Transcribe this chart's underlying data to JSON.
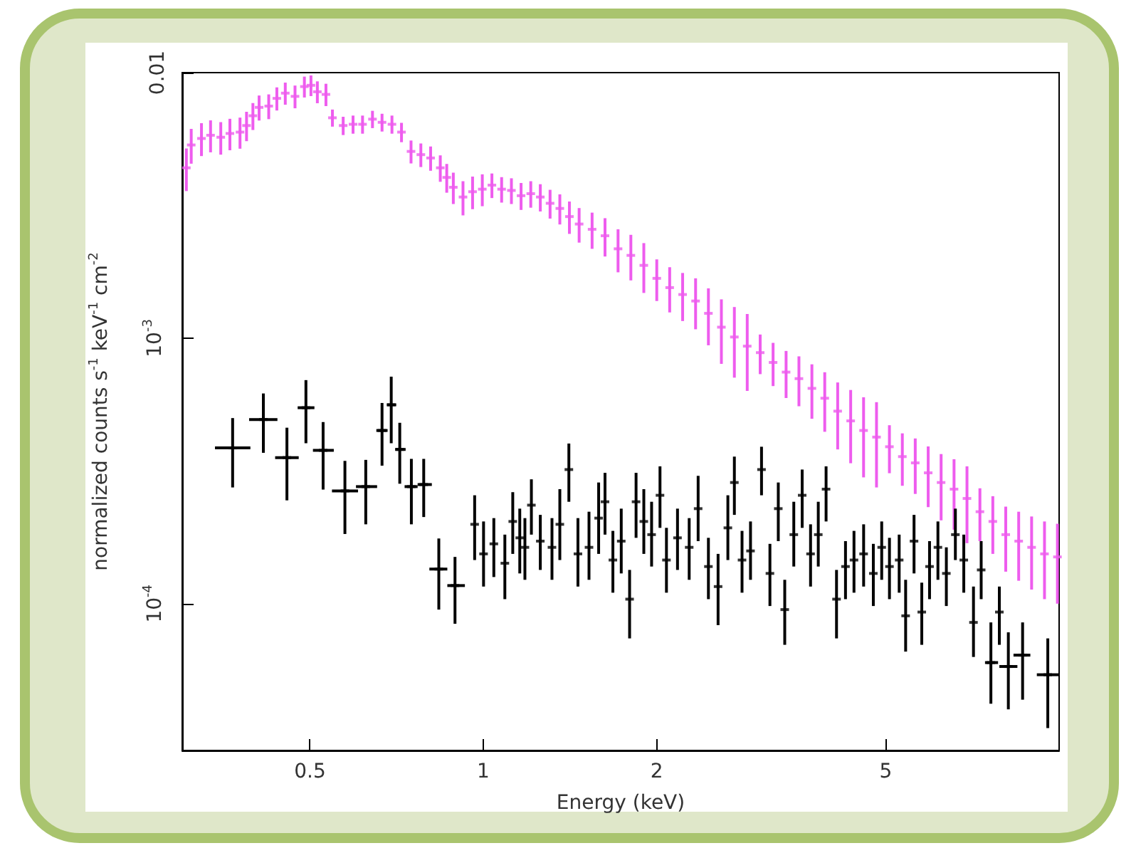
{
  "chart_data": {
    "type": "scatter",
    "xlabel": "Energy (keV)",
    "ylabel": "normalized counts s$^{-1}$ keV$^{-1}$ cm$^{-2}$",
    "log": "xy",
    "xlim": [
      0.3,
      10
    ],
    "xticks": [
      0.5,
      1,
      2,
      5
    ],
    "ylim": [
      2.8e-05,
      0.01
    ],
    "yticks": [
      0.01,
      {
        "value": 0.001,
        "label": "10$^{-3}$"
      },
      {
        "value": 0.0001,
        "label": "10$^{-4}$"
      }
    ],
    "series": [
      {
        "color": "#ee5cee",
        "x": [
          0.305,
          0.311,
          0.324,
          0.336,
          0.35,
          0.363,
          0.378,
          0.388,
          0.398,
          0.408,
          0.424,
          0.438,
          0.453,
          0.471,
          0.489,
          0.502,
          0.515,
          0.533,
          0.547,
          0.571,
          0.594,
          0.617,
          0.642,
          0.667,
          0.694,
          0.721,
          0.749,
          0.779,
          0.81,
          0.842,
          0.864,
          0.887,
          0.922,
          0.958,
          0.996,
          1.035,
          1.076,
          1.119,
          1.163,
          1.209,
          1.256,
          1.306,
          1.358,
          1.411,
          1.467,
          1.545,
          1.627,
          1.714,
          1.804,
          1.9,
          2.001,
          2.107,
          2.219,
          2.337,
          2.46,
          2.591,
          2.729,
          2.873,
          3.026,
          3.186,
          3.356,
          3.533,
          3.721,
          3.917,
          4.125,
          4.345,
          4.575,
          4.818,
          5.073,
          5.342,
          5.625,
          5.924,
          6.238,
          6.569,
          6.918,
          7.285,
          7.671,
          8.078,
          8.507,
          8.958,
          9.432,
          9.933
        ],
        "values": [
          0.00438,
          0.00534,
          0.00565,
          0.00581,
          0.00571,
          0.0059,
          0.00597,
          0.00632,
          0.00688,
          0.0074,
          0.00748,
          0.008,
          0.00837,
          0.00814,
          0.00886,
          0.00896,
          0.00847,
          0.00828,
          0.00676,
          0.00632,
          0.00639,
          0.00639,
          0.00668,
          0.0065,
          0.00639,
          0.00597,
          0.00505,
          0.00491,
          0.00477,
          0.00438,
          0.00403,
          0.0037,
          0.0034,
          0.00356,
          0.00364,
          0.00377,
          0.00364,
          0.0036,
          0.00344,
          0.0035,
          0.0034,
          0.00322,
          0.00308,
          0.00287,
          0.00269,
          0.00257,
          0.00243,
          0.00217,
          0.00205,
          0.00188,
          0.00168,
          0.00155,
          0.00146,
          0.00138,
          0.00124,
          0.0011,
          0.00101,
          0.000933,
          0.000882,
          0.00081,
          0.000745,
          0.000704,
          0.000647,
          0.000594,
          0.000531,
          0.000488,
          0.000449,
          0.000424,
          0.00039,
          0.000358,
          0.000339,
          0.000311,
          0.000286,
          0.00027,
          0.000249,
          0.000222,
          0.000204,
          0.000182,
          0.000172,
          0.000163,
          0.000154,
          0.00015
        ],
        "errors": [
          0.0008,
          0.0008,
          0.0008,
          0.0008,
          0.0008,
          0.0008,
          0.0008,
          0.0008,
          0.0008,
          0.0008,
          0.0008,
          0.0008,
          0.0008,
          0.0008,
          0.0008,
          0.0008,
          0.0008,
          0.0008,
          0.0005,
          0.0005,
          0.0005,
          0.0005,
          0.0005,
          0.0005,
          0.0005,
          0.0005,
          0.0005,
          0.0005,
          0.0005,
          0.0005,
          0.0005,
          0.0005,
          0.0005,
          0.0005,
          0.0005,
          0.0004,
          0.0004,
          0.0004,
          0.0004,
          0.0004,
          0.0004,
          0.0004,
          0.0004,
          0.0004,
          0.0004,
          0.0004,
          0.0004,
          0.0004,
          0.0004,
          0.0004,
          0.0003,
          0.0003,
          0.0003,
          0.0003,
          0.0003,
          0.0003,
          0.0003,
          0.0003,
          0.00015,
          0.00015,
          0.00015,
          0.00015,
          0.00015,
          0.00015,
          0.00015,
          0.00015,
          0.00015,
          0.00015,
          8e-05,
          8e-05,
          8e-05,
          8e-05,
          8e-05,
          8e-05,
          8e-05,
          5e-05,
          5e-05,
          5e-05,
          5e-05,
          5e-05,
          5e-05,
          5e-05
        ]
      },
      {
        "color": "#000000",
        "x": [
          0.367,
          0.415,
          0.456,
          0.492,
          0.527,
          0.575,
          0.625,
          0.667,
          0.692,
          0.716,
          0.75,
          0.788,
          0.837,
          0.893,
          0.966,
          1.001,
          1.043,
          1.09,
          1.125,
          1.157,
          1.181,
          1.212,
          1.256,
          1.316,
          1.358,
          1.408,
          1.46,
          1.526,
          1.586,
          1.627,
          1.679,
          1.736,
          1.795,
          1.842,
          1.9,
          1.96,
          2.027,
          2.08,
          2.174,
          2.278,
          2.361,
          2.46,
          2.557,
          2.659,
          2.729,
          2.814,
          2.911,
          3.042,
          3.146,
          3.253,
          3.338,
          3.461,
          3.579,
          3.701,
          3.817,
          3.938,
          4.106,
          4.256,
          4.403,
          4.576,
          4.757,
          4.919,
          5.074,
          5.275,
          5.413,
          5.598,
          5.774,
          5.956,
          6.159,
          6.37,
          6.604,
          6.83,
          7.1,
          7.322,
          7.612,
          7.873,
          8.162,
          8.641,
          9.557
        ],
        "values": [
          0.000386,
          0.000494,
          0.000355,
          0.000547,
          0.000378,
          0.000266,
          0.000276,
          0.000449,
          0.000561,
          0.000381,
          0.000276,
          0.000281,
          0.000135,
          0.000117,
          0.000199,
          0.000154,
          0.000168,
          0.000142,
          0.000204,
          0.000177,
          0.000163,
          0.000235,
          0.000172,
          0.000163,
          0.000199,
          0.00032,
          0.000154,
          0.000163,
          0.00021,
          0.000242,
          0.000146,
          0.000172,
          0.000104,
          0.000242,
          0.000204,
          0.000182,
          0.000256,
          0.000146,
          0.000177,
          0.000163,
          0.000228,
          0.000138,
          0.000116,
          0.000193,
          0.000286,
          0.000146,
          0.000158,
          0.00032,
          0.00013,
          0.000228,
          9.5e-05,
          0.000182,
          0.000256,
          0.000154,
          0.000182,
          0.00027,
          0.000104,
          0.000138,
          0.000146,
          0.000154,
          0.00013,
          0.000163,
          0.000138,
          0.000146,
          9e-05,
          0.000172,
          9.3e-05,
          0.000138,
          0.000163,
          0.00013,
          0.000182,
          0.000146,
          8.5e-05,
          0.000134,
          6e-05,
          9.3e-05,
          5.8e-05,
          6.4e-05,
          5.4e-05
        ],
        "errors": [
          [
            0.000274,
            0.0005
          ],
          [
            0.00037,
            0.000619
          ],
          [
            0.000245,
            0.00046
          ],
          [
            0.000402,
            0.000695
          ],
          [
            0.000269,
            0.000483
          ],
          [
            0.000183,
            0.000345
          ],
          [
            0.000199,
            0.000348
          ],
          [
            0.000331,
            0.00057
          ],
          [
            0.000402,
            0.000716
          ],
          [
            0.000283,
            0.00048
          ],
          [
            0.000199,
            0.000351
          ],
          [
            0.000212,
            0.000351
          ],
          [
            9.5e-05,
            0.000176
          ],
          [
            8.4e-05,
            0.00015
          ],
          [
            0.000146,
            0.000256
          ],
          [
            0.000116,
            0.000204
          ],
          [
            0.000126,
            0.00021
          ],
          [
            0.000104,
            0.000182
          ],
          [
            0.000154,
            0.000263
          ],
          [
            0.00013,
            0.000228
          ],
          [
            0.000123,
            0.00021
          ],
          [
            0.000182,
            0.000294
          ],
          [
            0.000134,
            0.000216
          ],
          [
            0.000123,
            0.00021
          ],
          [
            0.000146,
            0.00027
          ],
          [
            0.000242,
            0.000401
          ],
          [
            0.000116,
            0.00021
          ],
          [
            0.000123,
            0.000222
          ],
          [
            0.000154,
            0.000286
          ],
          [
            0.000182,
            0.000311
          ],
          [
            0.00011,
            0.000188
          ],
          [
            0.00013,
            0.000228
          ],
          [
            7.4e-05,
            0.000134
          ],
          [
            0.000177,
            0.000311
          ],
          [
            0.000154,
            0.00027
          ],
          [
            0.000138,
            0.000242
          ],
          [
            0.000193,
            0.000329
          ],
          [
            0.00011,
            0.000193
          ],
          [
            0.000134,
            0.000228
          ],
          [
            0.000123,
            0.00021
          ],
          [
            0.000172,
            0.000303
          ],
          [
            0.000104,
            0.000177
          ],
          [
            8.3e-05,
            0.000154
          ],
          [
            0.000146,
            0.000256
          ],
          [
            0.000216,
            0.000358
          ],
          [
            0.00011,
            0.000188
          ],
          [
            0.000123,
            0.000204
          ],
          [
            0.000256,
            0.00039
          ],
          [
            9.8e-05,
            0.000168
          ],
          [
            0.000172,
            0.000286
          ],
          [
            7e-05,
            0.000123
          ],
          [
            0.000138,
            0.000242
          ],
          [
            0.000193,
            0.00032
          ],
          [
            0.000116,
            0.000199
          ],
          [
            0.000138,
            0.000242
          ],
          [
            0.000204,
            0.000329
          ],
          [
            7.4e-05,
            0.000134
          ],
          [
            0.000104,
            0.000172
          ],
          [
            0.00011,
            0.000188
          ],
          [
            0.000116,
            0.000199
          ],
          [
            9.8e-05,
            0.000168
          ],
          [
            0.000123,
            0.000204
          ],
          [
            0.000104,
            0.000177
          ],
          [
            0.00011,
            0.000182
          ],
          [
            6.6e-05,
            0.000123
          ],
          [
            0.00013,
            0.000216
          ],
          [
            7e-05,
            0.00012
          ],
          [
            0.000104,
            0.000172
          ],
          [
            0.000123,
            0.000204
          ],
          [
            9.8e-05,
            0.000163
          ],
          [
            0.000146,
            0.000228
          ],
          [
            0.00011,
            0.000182
          ],
          [
            6.3e-05,
            0.000116
          ],
          [
            0.000104,
            0.000172
          ],
          [
            4.2e-05,
            8.5e-05
          ],
          [
            7e-05,
            0.000116
          ],
          [
            4e-05,
            7.8e-05
          ],
          [
            4.35e-05,
            8.5e-05
          ],
          [
            3.4e-05,
            7.4e-05
          ]
        ],
        "xerrors": [
          [
            0.342,
            0.394
          ],
          [
            0.392,
            0.439
          ],
          [
            0.435,
            0.478
          ],
          [
            0.476,
            0.509
          ],
          [
            0.506,
            0.55
          ],
          [
            0.546,
            0.606
          ],
          [
            0.601,
            0.654
          ],
          [
            0.652,
            0.682
          ],
          [
            0.68,
            0.706
          ],
          [
            0.703,
            0.733
          ],
          [
            0.73,
            0.769
          ],
          [
            0.769,
            0.814
          ],
          [
            0.806,
            0.866
          ],
          [
            0.866,
            0.929
          ],
          null,
          null,
          null,
          null,
          null,
          null,
          null,
          null,
          null,
          null,
          null,
          null,
          null,
          null,
          null,
          null,
          null,
          null,
          null,
          null,
          null,
          null,
          null,
          null,
          null,
          null,
          null,
          null,
          null,
          null,
          null,
          null,
          null,
          null,
          null,
          null,
          null,
          null,
          null,
          null,
          null,
          null,
          null,
          null,
          null,
          null,
          null,
          null,
          null,
          null,
          null,
          null,
          null,
          null,
          null,
          null,
          null,
          null,
          null,
          null,
          [
            7.435,
            7.833
          ],
          null,
          [
            7.873,
            8.463
          ],
          [
            8.332,
            8.913
          ],
          [
            9.147,
            9.987
          ]
        ]
      }
    ]
  }
}
